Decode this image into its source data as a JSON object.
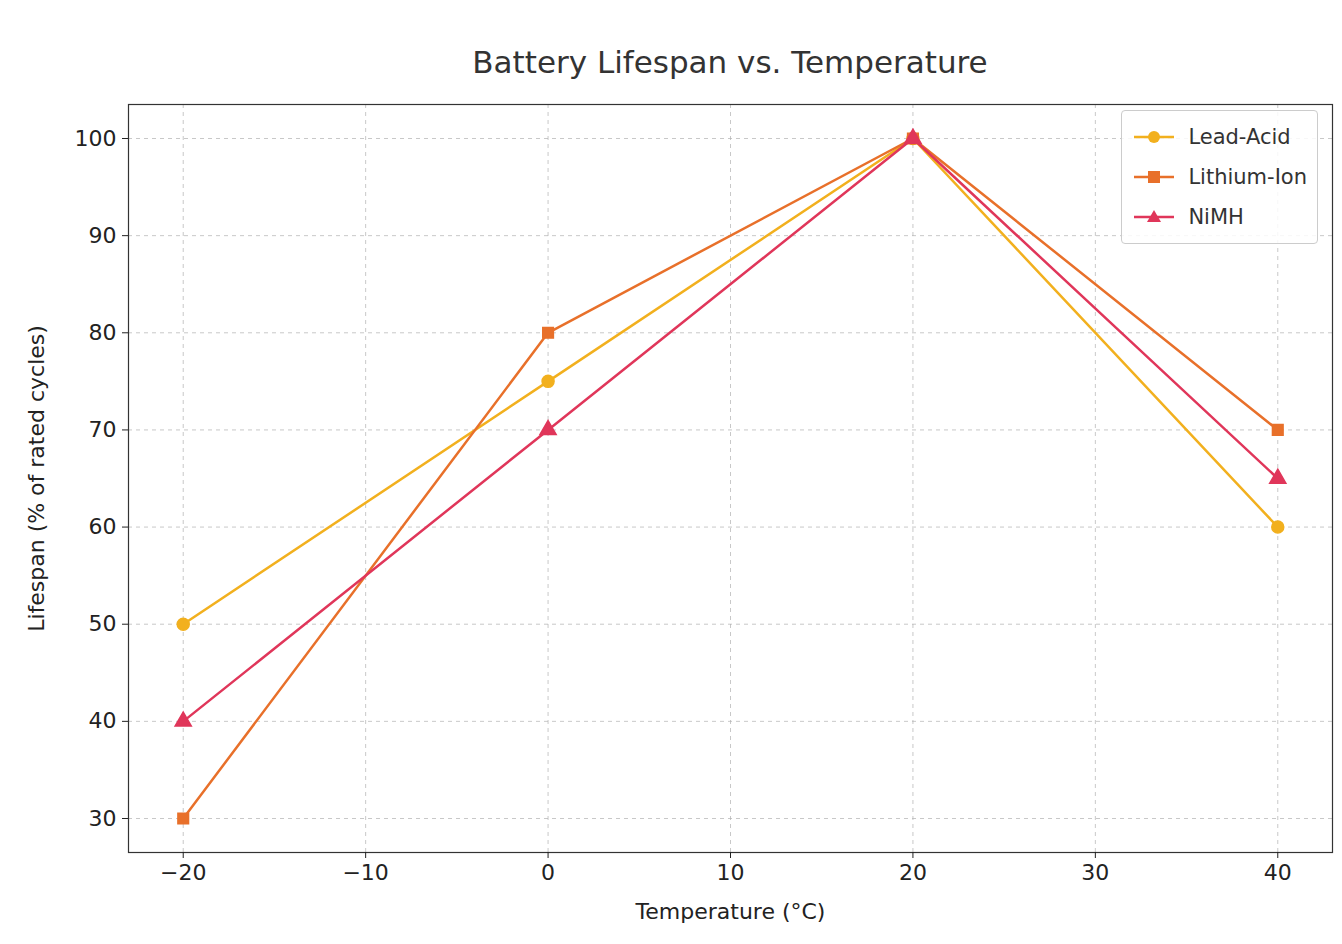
{
  "chart_data": {
    "type": "line",
    "title": "Battery Lifespan vs. Temperature",
    "x_label": "Temperature (°C)",
    "y_label": "Lifespan (% of rated cycles)",
    "x": [
      -20,
      0,
      20,
      40
    ],
    "series": [
      {
        "name": "Lead-Acid",
        "color": "#f2b01e",
        "marker": "circle",
        "values": [
          50,
          75,
          100,
          60
        ]
      },
      {
        "name": "Lithium-Ion",
        "color": "#e8702a",
        "marker": "square",
        "values": [
          30,
          80,
          100,
          70
        ]
      },
      {
        "name": "NiMH",
        "color": "#e0365a",
        "marker": "triangle",
        "values": [
          40,
          70,
          100,
          65
        ]
      }
    ],
    "xlim": [
      -23,
      43
    ],
    "xticks": [
      -20,
      -10,
      0,
      10,
      20,
      30,
      40
    ],
    "ylim": [
      26.5,
      103.5
    ],
    "yticks": [
      30,
      40,
      50,
      60,
      70,
      80,
      90,
      100
    ],
    "grid": true,
    "legend": "upper right"
  }
}
